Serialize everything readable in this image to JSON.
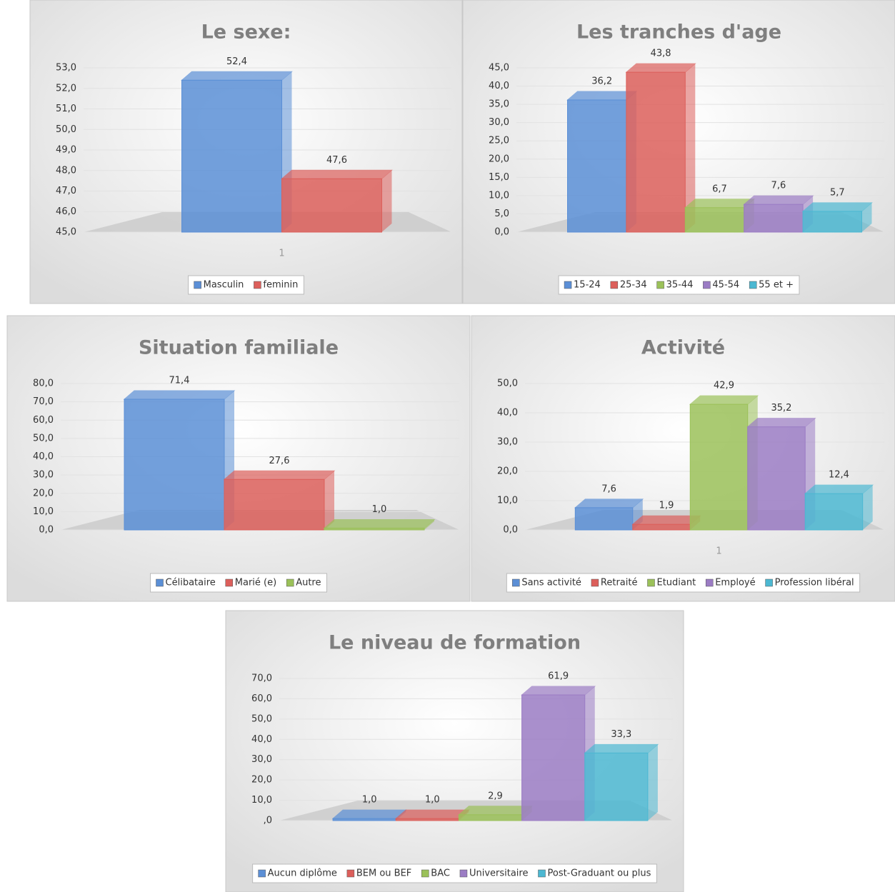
{
  "chart_data": [
    {
      "type": "bar",
      "title": "Le sexe:",
      "categories": [
        "1"
      ],
      "series": [
        {
          "name": "Masculin",
          "color": "#5b8fd6",
          "values": [
            52.4
          ],
          "value_labels": [
            "52,4"
          ]
        },
        {
          "name": "feminin",
          "color": "#dc5f5b",
          "values": [
            47.6
          ],
          "value_labels": [
            "47,6"
          ]
        }
      ],
      "ylim": [
        45,
        53
      ],
      "yticks": [
        {
          "value": 45,
          "label": "45,0"
        },
        {
          "value": 46,
          "label": "46,0"
        },
        {
          "value": 47,
          "label": "47,0"
        },
        {
          "value": 48,
          "label": "48,0"
        },
        {
          "value": 49,
          "label": "49,0"
        },
        {
          "value": 50,
          "label": "50,0"
        },
        {
          "value": 51,
          "label": "51,0"
        },
        {
          "value": 52,
          "label": "52,0"
        },
        {
          "value": 53,
          "label": "53,0"
        }
      ],
      "grid": true
    },
    {
      "type": "bar",
      "title": "Les tranches d'age",
      "categories": [
        null
      ],
      "series": [
        {
          "name": "15-24",
          "color": "#5b8fd6",
          "values": [
            36.2
          ],
          "value_labels": [
            "36,2"
          ]
        },
        {
          "name": "25-34",
          "color": "#dc5f5b",
          "values": [
            43.8
          ],
          "value_labels": [
            "43,8"
          ]
        },
        {
          "name": "35-44",
          "color": "#9bc159",
          "values": [
            6.7
          ],
          "value_labels": [
            "6,7"
          ]
        },
        {
          "name": "45-54",
          "color": "#9b7cc4",
          "values": [
            7.6
          ],
          "value_labels": [
            "7,6"
          ]
        },
        {
          "name": "55 et +",
          "color": "#4cb8d2",
          "values": [
            5.7
          ],
          "value_labels": [
            "5,7"
          ]
        }
      ],
      "ylim": [
        0,
        45
      ],
      "yticks": [
        {
          "value": 0,
          "label": "0,0"
        },
        {
          "value": 5,
          "label": "5,0"
        },
        {
          "value": 10,
          "label": "10,0"
        },
        {
          "value": 15,
          "label": "15,0"
        },
        {
          "value": 20,
          "label": "20,0"
        },
        {
          "value": 25,
          "label": "25,0"
        },
        {
          "value": 30,
          "label": "30,0"
        },
        {
          "value": 35,
          "label": "35,0"
        },
        {
          "value": 40,
          "label": "40,0"
        },
        {
          "value": 45,
          "label": "45,0"
        }
      ],
      "grid": true
    },
    {
      "type": "bar",
      "title": "Situation familiale",
      "categories": [
        null
      ],
      "series": [
        {
          "name": "Célibataire",
          "color": "#5b8fd6",
          "values": [
            71.4
          ],
          "value_labels": [
            "71,4"
          ]
        },
        {
          "name": "Marié (e)",
          "color": "#dc5f5b",
          "values": [
            27.6
          ],
          "value_labels": [
            "27,6"
          ]
        },
        {
          "name": "Autre",
          "color": "#9bc159",
          "values": [
            1.0
          ],
          "value_labels": [
            "1,0"
          ]
        }
      ],
      "ylim": [
        0,
        80
      ],
      "yticks": [
        {
          "value": 0,
          "label": "0,0"
        },
        {
          "value": 10,
          "label": "10,0"
        },
        {
          "value": 20,
          "label": "20,0"
        },
        {
          "value": 30,
          "label": "30,0"
        },
        {
          "value": 40,
          "label": "40,0"
        },
        {
          "value": 50,
          "label": "50,0"
        },
        {
          "value": 60,
          "label": "60,0"
        },
        {
          "value": 70,
          "label": "70,0"
        },
        {
          "value": 80,
          "label": "80,0"
        }
      ],
      "grid": true
    },
    {
      "type": "bar",
      "title": "Activité",
      "categories": [
        "1"
      ],
      "series": [
        {
          "name": "Sans activité",
          "color": "#5b8fd6",
          "values": [
            7.6
          ],
          "value_labels": [
            "7,6"
          ]
        },
        {
          "name": "Retraité",
          "color": "#dc5f5b",
          "values": [
            1.9
          ],
          "value_labels": [
            "1,9"
          ]
        },
        {
          "name": "Etudiant",
          "color": "#9bc159",
          "values": [
            42.9
          ],
          "value_labels": [
            "42,9"
          ]
        },
        {
          "name": "Employé",
          "color": "#9b7cc4",
          "values": [
            35.2
          ],
          "value_labels": [
            "35,2"
          ]
        },
        {
          "name": "Profession libéral",
          "color": "#4cb8d2",
          "values": [
            12.4
          ],
          "value_labels": [
            "12,4"
          ]
        }
      ],
      "ylim": [
        0,
        50
      ],
      "yticks": [
        {
          "value": 0,
          "label": "0,0"
        },
        {
          "value": 10,
          "label": "10,0"
        },
        {
          "value": 20,
          "label": "20,0"
        },
        {
          "value": 30,
          "label": "30,0"
        },
        {
          "value": 40,
          "label": "40,0"
        },
        {
          "value": 50,
          "label": "50,0"
        }
      ],
      "grid": true
    },
    {
      "type": "bar",
      "title": "Le niveau de formation",
      "categories": [
        null
      ],
      "series": [
        {
          "name": "Aucun diplôme",
          "color": "#5b8fd6",
          "values": [
            1.0
          ],
          "value_labels": [
            "1,0"
          ]
        },
        {
          "name": "BEM ou BEF",
          "color": "#dc5f5b",
          "values": [
            1.0
          ],
          "value_labels": [
            "1,0"
          ]
        },
        {
          "name": "BAC",
          "color": "#9bc159",
          "values": [
            2.9
          ],
          "value_labels": [
            "2,9"
          ]
        },
        {
          "name": "Universitaire",
          "color": "#9b7cc4",
          "values": [
            61.9
          ],
          "value_labels": [
            "61,9"
          ]
        },
        {
          "name": "Post-Graduant ou plus",
          "color": "#4cb8d2",
          "values": [
            33.3
          ],
          "value_labels": [
            "33,3"
          ]
        }
      ],
      "ylim": [
        0,
        70
      ],
      "yticks": [
        {
          "value": 0,
          "label": ",0"
        },
        {
          "value": 10,
          "label": "10,0"
        },
        {
          "value": 20,
          "label": "20,0"
        },
        {
          "value": 30,
          "label": "30,0"
        },
        {
          "value": 40,
          "label": "40,0"
        },
        {
          "value": 50,
          "label": "50,0"
        },
        {
          "value": 60,
          "label": "60,0"
        },
        {
          "value": 70,
          "label": "70,0"
        }
      ],
      "grid": true
    }
  ]
}
